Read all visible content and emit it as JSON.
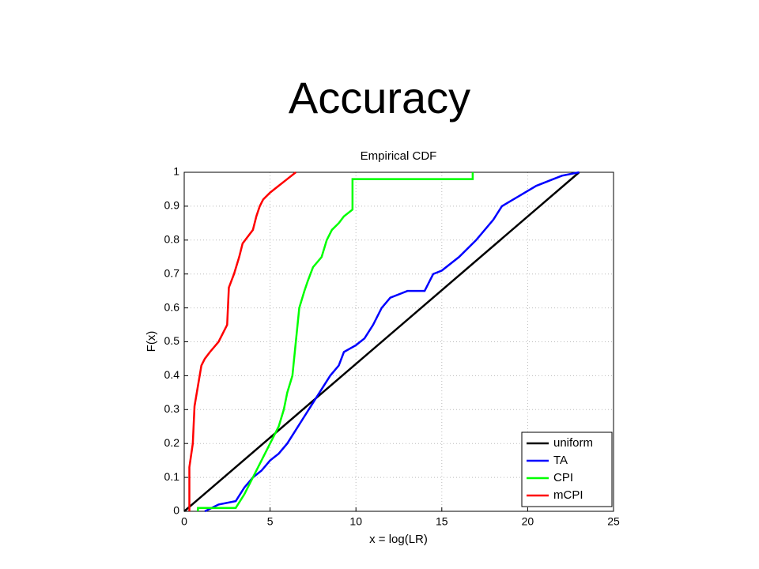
{
  "slide_title": "Accuracy",
  "chart_data": {
    "type": "line",
    "title": "Empirical CDF",
    "x_label": "x = log(LR)",
    "y_label": "F(x)",
    "xlim": [
      0,
      25
    ],
    "xticks": [
      0,
      5,
      10,
      15,
      20,
      25
    ],
    "ylim": [
      0,
      1
    ],
    "yticks": [
      0,
      0.1,
      0.2,
      0.3,
      0.4,
      0.5,
      0.6,
      0.7,
      0.8,
      0.9,
      1
    ],
    "grid": true,
    "legend_position": "lower-right",
    "series": [
      {
        "name": "uniform",
        "color": "#000000",
        "x": [
          0,
          23
        ],
        "values": [
          0,
          1
        ]
      },
      {
        "name": "TA",
        "color": "#0000ff",
        "x": [
          1.2,
          2,
          3,
          3.5,
          4,
          4.5,
          5,
          5.5,
          6,
          6.5,
          7,
          7.5,
          8,
          8.5,
          9,
          9.3,
          10,
          10.5,
          11,
          11.5,
          12,
          13,
          14,
          14.5,
          15,
          16,
          17,
          18,
          18.5,
          19.5,
          20.5,
          21.5,
          22,
          23
        ],
        "values": [
          0,
          0.02,
          0.03,
          0.07,
          0.1,
          0.12,
          0.15,
          0.17,
          0.2,
          0.24,
          0.28,
          0.32,
          0.36,
          0.4,
          0.43,
          0.47,
          0.49,
          0.51,
          0.55,
          0.6,
          0.63,
          0.65,
          0.65,
          0.7,
          0.71,
          0.75,
          0.8,
          0.86,
          0.9,
          0.93,
          0.96,
          0.98,
          0.99,
          1
        ]
      },
      {
        "name": "CPI",
        "color": "#00ff00",
        "x": [
          0.8,
          0.8,
          3,
          3.5,
          4,
          4.5,
          5,
          5.5,
          5.8,
          6,
          6.3,
          6.5,
          6.7,
          7,
          7.2,
          7.5,
          8,
          8.3,
          8.6,
          9,
          9.3,
          9.8,
          9.8,
          16.8,
          16.8
        ],
        "values": [
          0,
          0.01,
          0.01,
          0.05,
          0.1,
          0.15,
          0.2,
          0.25,
          0.3,
          0.35,
          0.4,
          0.5,
          0.6,
          0.65,
          0.68,
          0.72,
          0.75,
          0.8,
          0.83,
          0.85,
          0.87,
          0.89,
          0.98,
          0.98,
          1
        ]
      },
      {
        "name": "mCPI",
        "color": "#ff0000",
        "x": [
          0.3,
          0.3,
          0.5,
          0.6,
          0.8,
          1.0,
          1.2,
          1.5,
          2.0,
          2.5,
          2.6,
          2.9,
          3.2,
          3.4,
          3.7,
          4.0,
          4.2,
          4.4,
          4.6,
          5.0,
          5.5,
          6.0,
          6.5
        ],
        "values": [
          0,
          0.13,
          0.2,
          0.31,
          0.37,
          0.43,
          0.45,
          0.47,
          0.5,
          0.55,
          0.66,
          0.7,
          0.75,
          0.79,
          0.81,
          0.83,
          0.87,
          0.9,
          0.92,
          0.94,
          0.96,
          0.98,
          1
        ]
      }
    ]
  }
}
